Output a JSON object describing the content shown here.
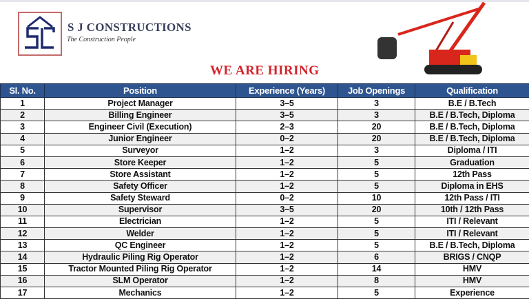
{
  "header": {
    "company": "S J CONSTRUCTIONS",
    "tagline": "The Construction People",
    "logo_text": "SJC",
    "headline": "WE ARE HIRING"
  },
  "colors": {
    "header_bg": "#2e5590",
    "headline": "#d2232a",
    "logo_border": "#c46a6a",
    "logo_mark": "#1e2a6e"
  },
  "table": {
    "columns": [
      "Sl. No.",
      "Position",
      "Experience (Years)",
      "Job Openings",
      "Qualification"
    ],
    "rows": [
      [
        "1",
        "Project Manager",
        "3–5",
        "3",
        "B.E / B.Tech"
      ],
      [
        "2",
        "Billing Engineer",
        "3–5",
        "3",
        "B.E / B.Tech, Diploma"
      ],
      [
        "3",
        "Engineer Civil (Execution)",
        "2–3",
        "20",
        "B.E / B.Tech, Diploma"
      ],
      [
        "4",
        "Junior Engineer",
        "0–2",
        "20",
        "B.E / B.Tech, Diploma"
      ],
      [
        "5",
        "Surveyor",
        "1–2",
        "3",
        "Diploma / ITI"
      ],
      [
        "6",
        "Store Keeper",
        "1–2",
        "5",
        "Graduation"
      ],
      [
        "7",
        "Store Assistant",
        "1–2",
        "5",
        "12th Pass"
      ],
      [
        "8",
        "Safety Officer",
        "1–2",
        "5",
        "Diploma in EHS"
      ],
      [
        "9",
        "Safety Steward",
        "0–2",
        "10",
        "12th Pass / ITI"
      ],
      [
        "10",
        "Supervisor",
        "3–5",
        "20",
        "10th / 12th Pass"
      ],
      [
        "11",
        "Electrician",
        "1–2",
        "5",
        "ITI / Relevant"
      ],
      [
        "12",
        "Welder",
        "1–2",
        "5",
        "ITI / Relevant"
      ],
      [
        "13",
        "QC Engineer",
        "1–2",
        "5",
        "B.E / B.Tech, Diploma"
      ],
      [
        "14",
        "Hydraulic Piling Rig Operator",
        "1–2",
        "6",
        "BRIGS / CNQP"
      ],
      [
        "15",
        "Tractor Mounted Piling Rig Operator",
        "1–2",
        "14",
        "HMV"
      ],
      [
        "16",
        "SLM Operator",
        "1–2",
        "8",
        "HMV"
      ],
      [
        "17",
        "Mechanics",
        "1–2",
        "5",
        "Experience"
      ]
    ]
  }
}
